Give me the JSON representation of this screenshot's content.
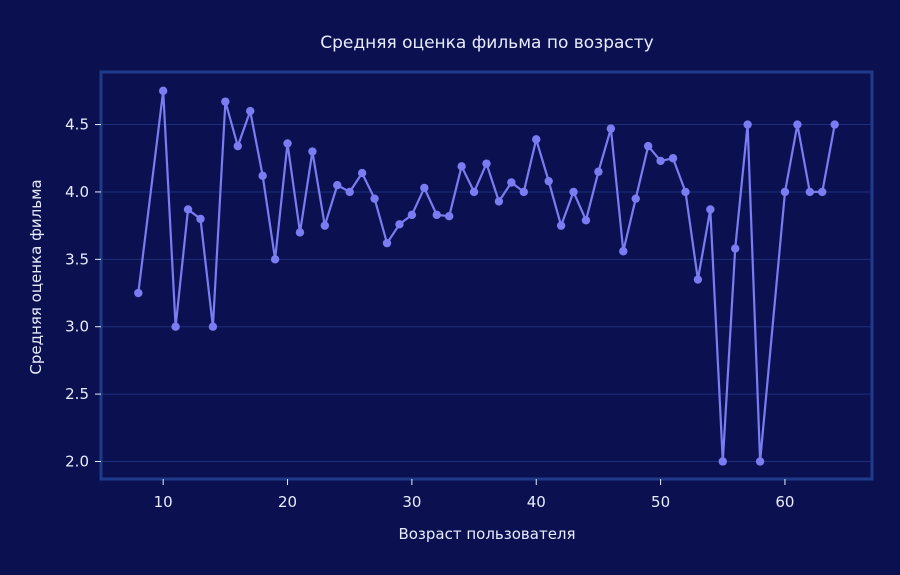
{
  "colors": {
    "background": "#0b1150",
    "plot_background": "#0b1150",
    "frame": "#1f3a8a",
    "grid": "#1d2f7a",
    "series": "#7b7bf2",
    "text": "#e8ecff"
  },
  "chart_data": {
    "type": "line",
    "title": "Средняя оценка фильма по возрасту",
    "xlabel": "Возраст пользователя",
    "ylabel": "Средняя оценка фильма",
    "xlim": [
      5,
      67
    ],
    "ylim": [
      1.87,
      4.89
    ],
    "xticks": [
      10,
      20,
      30,
      40,
      50,
      60
    ],
    "yticks": [
      "2.0",
      "2.5",
      "3.0",
      "3.5",
      "4.0",
      "4.5"
    ],
    "grid": true,
    "legend": "none",
    "series": [
      {
        "markers": true,
        "x": [
          8,
          10,
          11,
          12,
          13,
          14,
          15,
          16,
          17,
          18,
          19,
          20,
          21,
          22,
          23,
          24,
          25,
          26,
          27,
          28,
          29,
          30,
          31,
          32,
          33,
          34,
          35,
          36,
          37,
          38,
          39,
          40,
          41,
          42,
          43,
          44,
          45,
          46,
          47,
          48,
          49,
          50,
          51,
          52,
          53,
          54,
          55,
          56,
          57,
          58,
          60,
          61,
          62,
          63,
          64
        ],
        "y": [
          3.25,
          4.75,
          3.0,
          3.87,
          3.8,
          3.0,
          4.67,
          4.34,
          4.6,
          4.12,
          3.5,
          4.36,
          3.7,
          4.3,
          3.75,
          4.05,
          4.0,
          4.14,
          3.95,
          3.62,
          3.76,
          3.83,
          4.03,
          3.83,
          3.82,
          4.19,
          4.0,
          4.21,
          3.93,
          4.07,
          4.0,
          4.39,
          4.08,
          3.75,
          4.0,
          3.79,
          4.15,
          4.47,
          3.56,
          3.95,
          4.34,
          4.23,
          4.25,
          4.0,
          3.35,
          3.87,
          2.0,
          3.58,
          4.5,
          2.0,
          4.0,
          4.5,
          4.0,
          4.0,
          4.5
        ]
      }
    ]
  }
}
